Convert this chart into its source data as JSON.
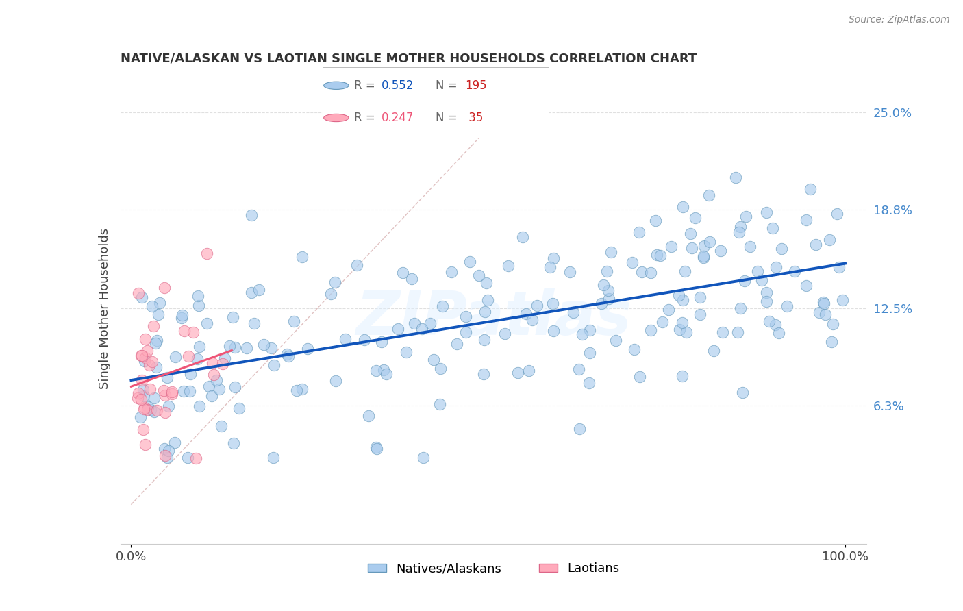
{
  "title": "NATIVE/ALASKAN VS LAOTIAN SINGLE MOTHER HOUSEHOLDS CORRELATION CHART",
  "source": "Source: ZipAtlas.com",
  "ylabel": "Single Mother Households",
  "ytick_labels": [
    "6.3%",
    "12.5%",
    "18.8%",
    "25.0%"
  ],
  "ytick_values": [
    0.063,
    0.125,
    0.188,
    0.25
  ],
  "blue_color": "#AACCEE",
  "blue_edge_color": "#6699BB",
  "pink_color": "#FFAABB",
  "pink_edge_color": "#DD6688",
  "blue_line_color": "#1155BB",
  "pink_line_color": "#EE5577",
  "ref_line_color": "#DDBBBB",
  "watermark": "ZIPatlas",
  "watermark_color": "#DDEEFF",
  "background_color": "#FFFFFF",
  "grid_color": "#DDDDDD",
  "xlim": [
    -0.015,
    1.03
  ],
  "ylim": [
    -0.025,
    0.275
  ],
  "title_fontsize": 13,
  "source_fontsize": 10,
  "tick_fontsize": 13,
  "ylabel_fontsize": 13
}
